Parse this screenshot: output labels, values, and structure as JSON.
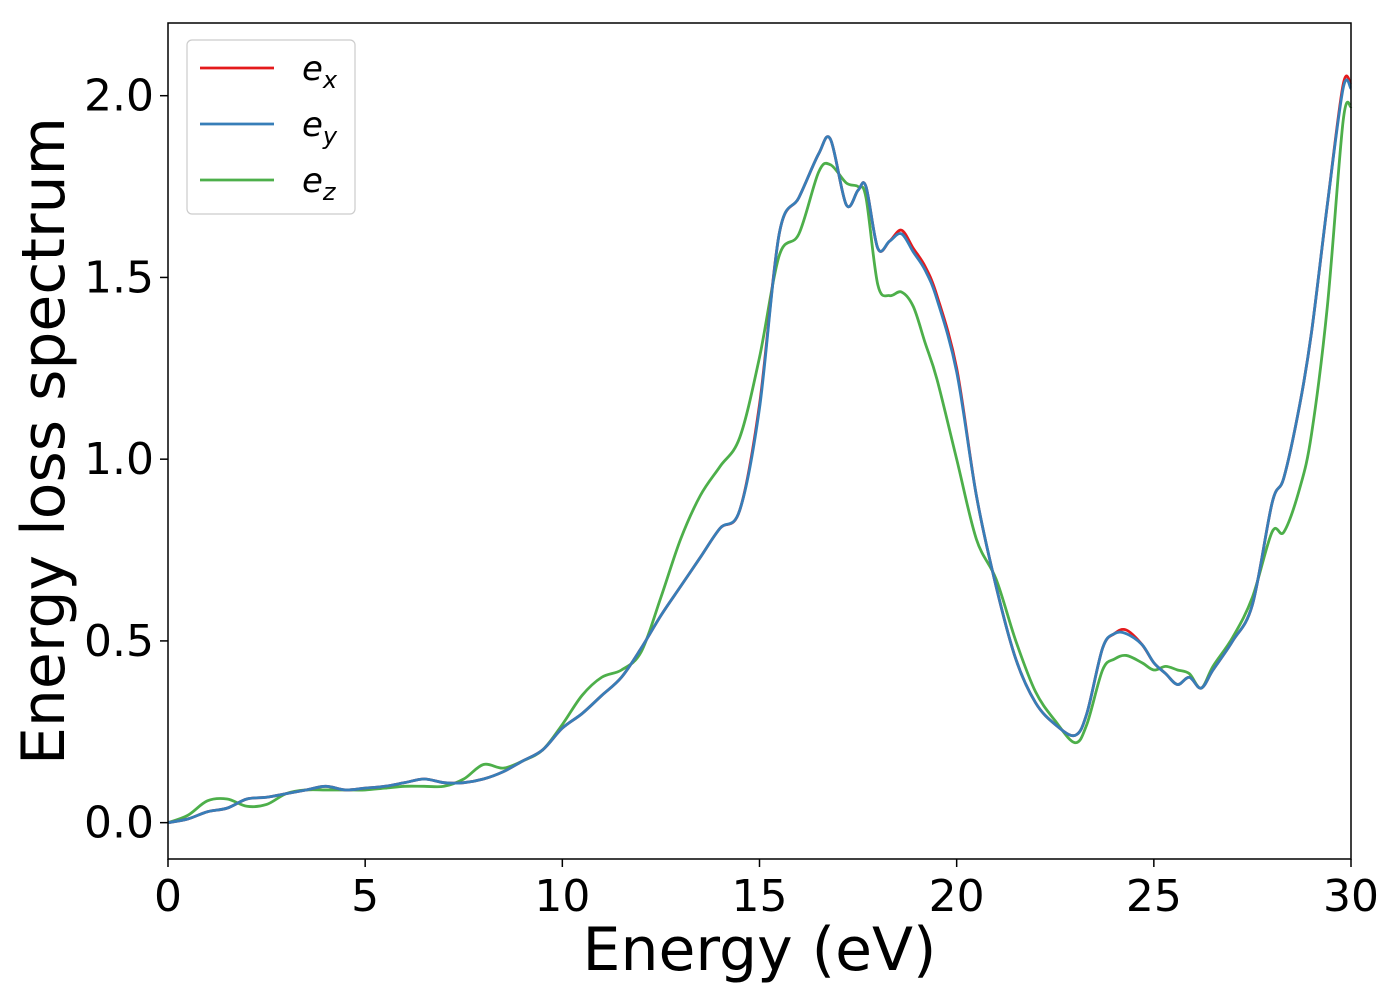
{
  "chart_data": {
    "type": "line",
    "title": "",
    "xlabel": "Energy (eV)",
    "ylabel": "Energy loss spectrum",
    "xlim": [
      0,
      30
    ],
    "ylim": [
      -0.1,
      2.2
    ],
    "xticks": [
      0,
      5,
      10,
      15,
      20,
      25,
      30
    ],
    "xtick_labels": [
      "0",
      "5",
      "10",
      "15",
      "20",
      "25",
      "30"
    ],
    "yticks": [
      0.0,
      0.5,
      1.0,
      1.5,
      2.0
    ],
    "ytick_labels": [
      "0.0",
      "0.5",
      "1.0",
      "1.5",
      "2.0"
    ],
    "grid": false,
    "legend_position": "top-left",
    "series": [
      {
        "name": "e_x",
        "label_base": "e",
        "label_sub": "x",
        "color": "#e41a1c",
        "x": [
          0,
          0.5,
          1,
          1.5,
          2,
          2.5,
          3,
          3.5,
          4,
          4.5,
          5,
          5.5,
          6,
          6.5,
          7,
          7.5,
          8,
          8.5,
          9,
          9.5,
          10,
          10.5,
          11,
          11.5,
          12,
          12.5,
          13,
          13.5,
          14,
          14.5,
          15,
          15.5,
          16,
          16.5,
          16.8,
          17.2,
          17.5,
          17.7,
          18,
          18.3,
          18.6,
          18.9,
          19.2,
          19.5,
          20,
          20.5,
          21,
          21.5,
          22,
          22.5,
          23,
          23.3,
          23.7,
          24,
          24.3,
          24.7,
          25,
          25.3,
          25.6,
          25.9,
          26.2,
          26.5,
          27,
          27.5,
          28,
          28.3,
          28.7,
          29,
          29.4,
          29.8,
          30
        ],
        "y": [
          0.0,
          0.01,
          0.03,
          0.04,
          0.065,
          0.07,
          0.08,
          0.09,
          0.1,
          0.09,
          0.095,
          0.1,
          0.11,
          0.12,
          0.11,
          0.11,
          0.12,
          0.14,
          0.17,
          0.2,
          0.26,
          0.3,
          0.35,
          0.4,
          0.48,
          0.57,
          0.65,
          0.73,
          0.81,
          0.86,
          1.15,
          1.62,
          1.72,
          1.84,
          1.88,
          1.7,
          1.74,
          1.75,
          1.58,
          1.6,
          1.63,
          1.58,
          1.53,
          1.45,
          1.25,
          0.9,
          0.65,
          0.45,
          0.33,
          0.27,
          0.24,
          0.3,
          0.48,
          0.52,
          0.53,
          0.49,
          0.44,
          0.41,
          0.38,
          0.4,
          0.37,
          0.42,
          0.5,
          0.6,
          0.88,
          0.95,
          1.15,
          1.35,
          1.7,
          2.03,
          2.03
        ]
      },
      {
        "name": "e_y",
        "label_base": "e",
        "label_sub": "y",
        "color": "#377eb8",
        "x": [
          0,
          0.5,
          1,
          1.5,
          2,
          2.5,
          3,
          3.5,
          4,
          4.5,
          5,
          5.5,
          6,
          6.5,
          7,
          7.5,
          8,
          8.5,
          9,
          9.5,
          10,
          10.5,
          11,
          11.5,
          12,
          12.5,
          13,
          13.5,
          14,
          14.5,
          15,
          15.5,
          16,
          16.5,
          16.8,
          17.2,
          17.5,
          17.7,
          18,
          18.3,
          18.6,
          18.9,
          19.2,
          19.5,
          20,
          20.5,
          21,
          21.5,
          22,
          22.5,
          23,
          23.3,
          23.7,
          24,
          24.3,
          24.7,
          25,
          25.3,
          25.6,
          25.9,
          26.2,
          26.5,
          27,
          27.5,
          28,
          28.3,
          28.7,
          29,
          29.4,
          29.8,
          30
        ],
        "y": [
          0.0,
          0.01,
          0.03,
          0.04,
          0.065,
          0.07,
          0.08,
          0.09,
          0.1,
          0.09,
          0.095,
          0.1,
          0.11,
          0.12,
          0.11,
          0.11,
          0.12,
          0.14,
          0.17,
          0.2,
          0.26,
          0.3,
          0.35,
          0.4,
          0.48,
          0.57,
          0.65,
          0.73,
          0.81,
          0.86,
          1.14,
          1.62,
          1.72,
          1.84,
          1.88,
          1.7,
          1.74,
          1.75,
          1.58,
          1.6,
          1.62,
          1.57,
          1.52,
          1.44,
          1.24,
          0.9,
          0.65,
          0.45,
          0.33,
          0.27,
          0.24,
          0.3,
          0.48,
          0.52,
          0.52,
          0.49,
          0.44,
          0.41,
          0.38,
          0.4,
          0.37,
          0.42,
          0.5,
          0.6,
          0.88,
          0.95,
          1.15,
          1.35,
          1.7,
          2.02,
          2.02
        ]
      },
      {
        "name": "e_z",
        "label_base": "e",
        "label_sub": "z",
        "color": "#4daf4a",
        "x": [
          0,
          0.5,
          1,
          1.5,
          2,
          2.5,
          3,
          3.5,
          4,
          4.5,
          5,
          5.5,
          6,
          6.5,
          7,
          7.5,
          8,
          8.5,
          9,
          9.5,
          10,
          10.5,
          11,
          11.5,
          12,
          12.5,
          13,
          13.5,
          14,
          14.5,
          15,
          15.5,
          16,
          16.5,
          16.8,
          17.2,
          17.5,
          17.7,
          18,
          18.3,
          18.6,
          18.9,
          19.2,
          19.5,
          20,
          20.5,
          21,
          21.5,
          22,
          22.5,
          23,
          23.3,
          23.7,
          24,
          24.3,
          24.7,
          25,
          25.3,
          25.6,
          25.9,
          26.2,
          26.5,
          27,
          27.5,
          28,
          28.3,
          28.7,
          29,
          29.4,
          29.8,
          30
        ],
        "y": [
          0.0,
          0.02,
          0.06,
          0.065,
          0.045,
          0.05,
          0.08,
          0.09,
          0.09,
          0.09,
          0.09,
          0.095,
          0.1,
          0.1,
          0.1,
          0.12,
          0.16,
          0.15,
          0.17,
          0.2,
          0.27,
          0.35,
          0.4,
          0.42,
          0.47,
          0.62,
          0.78,
          0.9,
          0.98,
          1.06,
          1.28,
          1.56,
          1.62,
          1.79,
          1.81,
          1.76,
          1.75,
          1.72,
          1.48,
          1.45,
          1.46,
          1.42,
          1.32,
          1.22,
          1.0,
          0.78,
          0.67,
          0.5,
          0.36,
          0.28,
          0.22,
          0.27,
          0.42,
          0.45,
          0.46,
          0.44,
          0.42,
          0.43,
          0.42,
          0.41,
          0.37,
          0.43,
          0.51,
          0.62,
          0.8,
          0.8,
          0.92,
          1.07,
          1.42,
          1.93,
          1.97
        ]
      }
    ]
  }
}
